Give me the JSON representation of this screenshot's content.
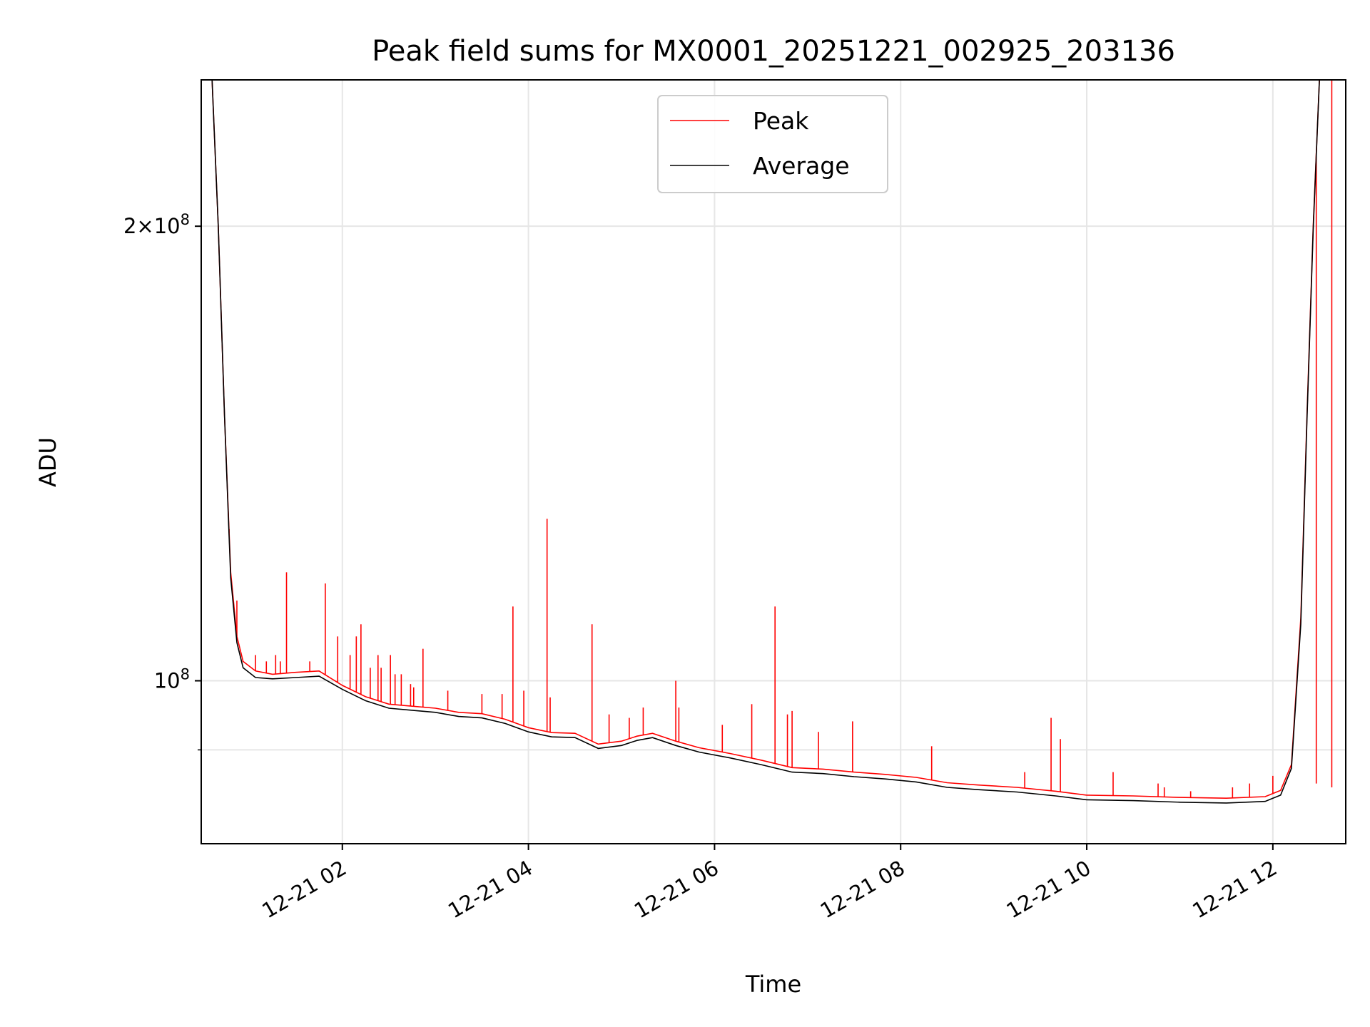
{
  "chart_data": {
    "type": "line",
    "title": "Peak field sums for MX0001_20251221_002925_203136",
    "xlabel": "Time",
    "ylabel": "ADU",
    "y_scale": "log",
    "ylim": [
      78000000,
      250000000
    ],
    "xlim": [
      "2025-12-21 00:29",
      "2025-12-21 12:47"
    ],
    "grid": true,
    "legend_position": "top-center",
    "x_ticks": [
      "12-21 02",
      "12-21 04",
      "12-21 06",
      "12-21 08",
      "12-21 10",
      "12-21 12"
    ],
    "x_tick_times": [
      "2025-12-21 02:00",
      "2025-12-21 04:00",
      "2025-12-21 06:00",
      "2025-12-21 08:00",
      "2025-12-21 10:00",
      "2025-12-21 12:00"
    ],
    "y_ticks": [
      {
        "value": 100000000,
        "base": "10",
        "exp": "8",
        "mantissa": ""
      },
      {
        "value": 200000000,
        "base": "10",
        "exp": "8",
        "mantissa": "2×"
      }
    ],
    "y_minor_gridlines": [
      90000000
    ],
    "series": [
      {
        "name": "Peak",
        "color": "#ff0000",
        "points": [
          [
            "2025-12-21 00:36",
            250000000
          ],
          [
            "2025-12-21 00:40",
            200000000
          ],
          [
            "2025-12-21 00:44",
            150000000
          ],
          [
            "2025-12-21 00:48",
            118000000
          ],
          [
            "2025-12-21 00:52",
            107000000
          ],
          [
            "2025-12-21 00:56",
            103000000
          ],
          [
            "2025-12-21 01:04",
            101500000
          ],
          [
            "2025-12-21 01:15",
            101000000
          ],
          [
            "2025-12-21 01:30",
            101300000
          ],
          [
            "2025-12-21 01:45",
            101500000
          ],
          [
            "2025-12-21 02:00",
            99300000
          ],
          [
            "2025-12-21 02:15",
            97600000
          ],
          [
            "2025-12-21 02:30",
            96500000
          ],
          [
            "2025-12-21 02:45",
            96200000
          ],
          [
            "2025-12-21 03:00",
            95900000
          ],
          [
            "2025-12-21 03:15",
            95300000
          ],
          [
            "2025-12-21 03:30",
            95100000
          ],
          [
            "2025-12-21 03:45",
            94300000
          ],
          [
            "2025-12-21 04:00",
            93100000
          ],
          [
            "2025-12-21 04:15",
            92400000
          ],
          [
            "2025-12-21 04:30",
            92300000
          ],
          [
            "2025-12-21 04:45",
            90800000
          ],
          [
            "2025-12-21 05:00",
            91200000
          ],
          [
            "2025-12-21 05:10",
            91900000
          ],
          [
            "2025-12-21 05:20",
            92300000
          ],
          [
            "2025-12-21 05:35",
            91200000
          ],
          [
            "2025-12-21 05:50",
            90300000
          ],
          [
            "2025-12-21 06:10",
            89500000
          ],
          [
            "2025-12-21 06:30",
            88600000
          ],
          [
            "2025-12-21 06:50",
            87600000
          ],
          [
            "2025-12-21 07:10",
            87400000
          ],
          [
            "2025-12-21 07:30",
            87000000
          ],
          [
            "2025-12-21 07:50",
            86700000
          ],
          [
            "2025-12-21 08:10",
            86300000
          ],
          [
            "2025-12-21 08:30",
            85600000
          ],
          [
            "2025-12-21 08:50",
            85300000
          ],
          [
            "2025-12-21 09:15",
            85000000
          ],
          [
            "2025-12-21 09:40",
            84500000
          ],
          [
            "2025-12-21 10:00",
            84000000
          ],
          [
            "2025-12-21 10:30",
            83900000
          ],
          [
            "2025-12-21 11:00",
            83700000
          ],
          [
            "2025-12-21 11:30",
            83600000
          ],
          [
            "2025-12-21 11:55",
            83800000
          ],
          [
            "2025-12-21 12:05",
            84600000
          ],
          [
            "2025-12-21 12:12",
            88000000
          ],
          [
            "2025-12-21 12:18",
            110000000
          ],
          [
            "2025-12-21 12:22",
            150000000
          ],
          [
            "2025-12-21 12:26",
            200000000
          ],
          [
            "2025-12-21 12:30",
            250000000
          ]
        ],
        "spikes": [
          [
            "2025-12-21 00:47",
            126000000
          ],
          [
            "2025-12-21 00:52",
            113000000
          ],
          [
            "2025-12-21 01:04",
            104000000
          ],
          [
            "2025-12-21 01:11",
            103000000
          ],
          [
            "2025-12-21 01:17",
            104000000
          ],
          [
            "2025-12-21 01:20",
            103000000
          ],
          [
            "2025-12-21 01:24",
            118000000
          ],
          [
            "2025-12-21 01:39",
            103000000
          ],
          [
            "2025-12-21 01:49",
            116000000
          ],
          [
            "2025-12-21 01:57",
            107000000
          ],
          [
            "2025-12-21 02:05",
            104000000
          ],
          [
            "2025-12-21 02:09",
            107000000
          ],
          [
            "2025-12-21 02:12",
            109000000
          ],
          [
            "2025-12-21 02:18",
            102000000
          ],
          [
            "2025-12-21 02:23",
            104000000
          ],
          [
            "2025-12-21 02:25",
            102000000
          ],
          [
            "2025-12-21 02:31",
            104000000
          ],
          [
            "2025-12-21 02:34",
            101000000
          ],
          [
            "2025-12-21 02:38",
            101000000
          ],
          [
            "2025-12-21 02:44",
            99500000
          ],
          [
            "2025-12-21 02:46",
            99000000
          ],
          [
            "2025-12-21 02:52",
            105000000
          ],
          [
            "2025-12-21 03:08",
            98500000
          ],
          [
            "2025-12-21 03:30",
            98000000
          ],
          [
            "2025-12-21 03:43",
            98000000
          ],
          [
            "2025-12-21 03:50",
            112000000
          ],
          [
            "2025-12-21 03:57",
            98500000
          ],
          [
            "2025-12-21 04:12",
            128000000
          ],
          [
            "2025-12-21 04:14",
            97500000
          ],
          [
            "2025-12-21 04:41",
            109000000
          ],
          [
            "2025-12-21 04:52",
            95000000
          ],
          [
            "2025-12-21 05:05",
            94500000
          ],
          [
            "2025-12-21 05:14",
            96000000
          ],
          [
            "2025-12-21 05:35",
            100000000
          ],
          [
            "2025-12-21 05:37",
            96000000
          ],
          [
            "2025-12-21 06:05",
            93500000
          ],
          [
            "2025-12-21 06:24",
            96500000
          ],
          [
            "2025-12-21 06:39",
            112000000
          ],
          [
            "2025-12-21 06:47",
            95000000
          ],
          [
            "2025-12-21 06:50",
            95500000
          ],
          [
            "2025-12-21 07:07",
            92500000
          ],
          [
            "2025-12-21 07:29",
            94000000
          ],
          [
            "2025-12-21 08:20",
            90500000
          ],
          [
            "2025-12-21 09:20",
            87000000
          ],
          [
            "2025-12-21 09:37",
            94500000
          ],
          [
            "2025-12-21 09:43",
            91500000
          ],
          [
            "2025-12-21 10:17",
            87000000
          ],
          [
            "2025-12-21 10:46",
            85500000
          ],
          [
            "2025-12-21 10:50",
            85000000
          ],
          [
            "2025-12-21 11:07",
            84500000
          ],
          [
            "2025-12-21 11:34",
            85000000
          ],
          [
            "2025-12-21 11:45",
            85500000
          ],
          [
            "2025-12-21 12:00",
            86500000
          ],
          [
            "2025-12-21 12:28",
            85500000
          ],
          [
            "2025-12-21 12:38",
            85000000
          ],
          [
            "2025-12-21 12:47",
            89000000
          ]
        ]
      },
      {
        "name": "Average",
        "color": "#000000",
        "points": [
          [
            "2025-12-21 00:36",
            250000000
          ],
          [
            "2025-12-21 00:40",
            200000000
          ],
          [
            "2025-12-21 00:44",
            150000000
          ],
          [
            "2025-12-21 00:48",
            117000000
          ],
          [
            "2025-12-21 00:52",
            106000000
          ],
          [
            "2025-12-21 00:56",
            102000000
          ],
          [
            "2025-12-21 01:04",
            100500000
          ],
          [
            "2025-12-21 01:15",
            100300000
          ],
          [
            "2025-12-21 01:30",
            100500000
          ],
          [
            "2025-12-21 01:45",
            100700000
          ],
          [
            "2025-12-21 02:00",
            98700000
          ],
          [
            "2025-12-21 02:15",
            97000000
          ],
          [
            "2025-12-21 02:30",
            95900000
          ],
          [
            "2025-12-21 02:45",
            95600000
          ],
          [
            "2025-12-21 03:00",
            95300000
          ],
          [
            "2025-12-21 03:15",
            94700000
          ],
          [
            "2025-12-21 03:30",
            94500000
          ],
          [
            "2025-12-21 03:45",
            93700000
          ],
          [
            "2025-12-21 04:00",
            92500000
          ],
          [
            "2025-12-21 04:15",
            91800000
          ],
          [
            "2025-12-21 04:30",
            91700000
          ],
          [
            "2025-12-21 04:45",
            90200000
          ],
          [
            "2025-12-21 05:00",
            90600000
          ],
          [
            "2025-12-21 05:10",
            91300000
          ],
          [
            "2025-12-21 05:20",
            91700000
          ],
          [
            "2025-12-21 05:35",
            90600000
          ],
          [
            "2025-12-21 05:50",
            89700000
          ],
          [
            "2025-12-21 06:10",
            88900000
          ],
          [
            "2025-12-21 06:30",
            88000000
          ],
          [
            "2025-12-21 06:50",
            87000000
          ],
          [
            "2025-12-21 07:10",
            86800000
          ],
          [
            "2025-12-21 07:30",
            86400000
          ],
          [
            "2025-12-21 07:50",
            86100000
          ],
          [
            "2025-12-21 08:10",
            85700000
          ],
          [
            "2025-12-21 08:30",
            85000000
          ],
          [
            "2025-12-21 08:50",
            84700000
          ],
          [
            "2025-12-21 09:15",
            84400000
          ],
          [
            "2025-12-21 09:40",
            83900000
          ],
          [
            "2025-12-21 10:00",
            83400000
          ],
          [
            "2025-12-21 10:30",
            83300000
          ],
          [
            "2025-12-21 11:00",
            83100000
          ],
          [
            "2025-12-21 11:30",
            83000000
          ],
          [
            "2025-12-21 11:55",
            83200000
          ],
          [
            "2025-12-21 12:05",
            84000000
          ],
          [
            "2025-12-21 12:12",
            87500000
          ],
          [
            "2025-12-21 12:18",
            109000000
          ],
          [
            "2025-12-21 12:22",
            149000000
          ],
          [
            "2025-12-21 12:26",
            199000000
          ],
          [
            "2025-12-21 12:30",
            250000000
          ]
        ]
      }
    ]
  }
}
